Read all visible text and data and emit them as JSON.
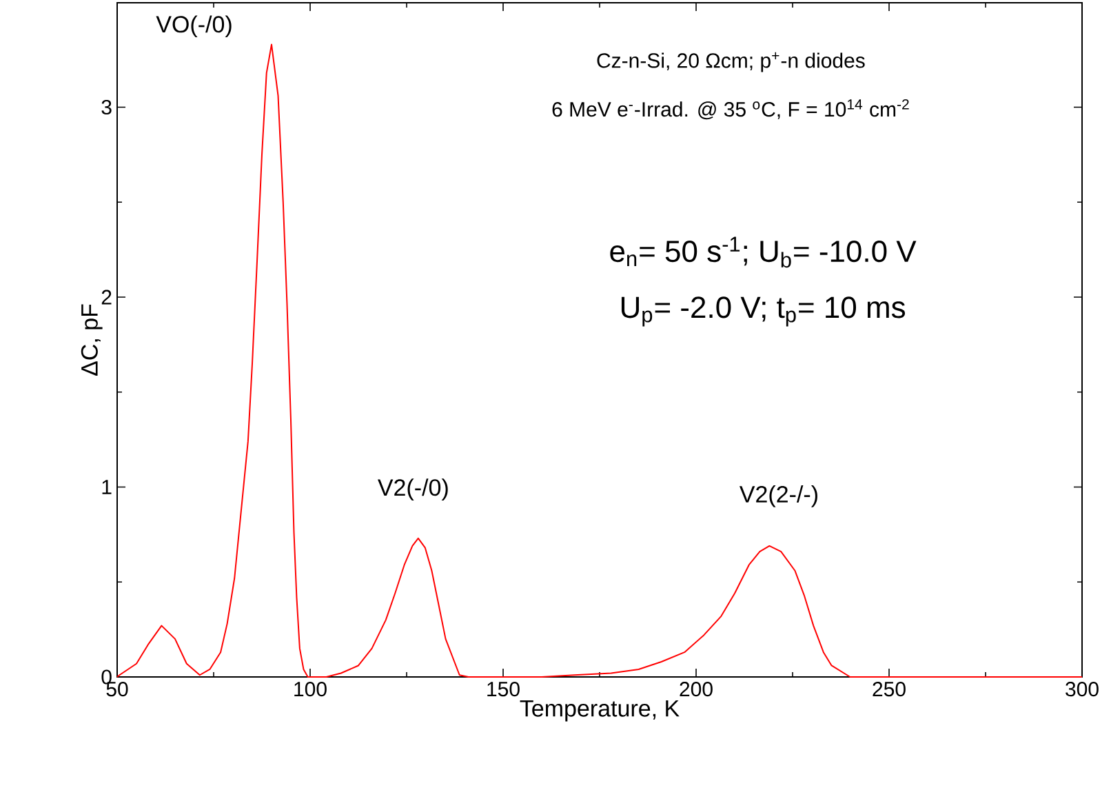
{
  "chart_data": {
    "type": "line",
    "xlabel": "Temperature, K",
    "ylabel": "ΔC, pF",
    "x": [
      50,
      50.6,
      55,
      58,
      61.5,
      65,
      68,
      71.4,
      74,
      76.8,
      78.5,
      80.4,
      82,
      83.9,
      85,
      86.3,
      87.5,
      88.7,
      90.0,
      91.7,
      93,
      94.0,
      95,
      95.8,
      96.5,
      97.3,
      98.3,
      99.4,
      104.2,
      108,
      112.5,
      116,
      119.6,
      122,
      124.4,
      126.5,
      128.0,
      129.8,
      131.5,
      133.3,
      135.1,
      138.7,
      141,
      150,
      160,
      168.5,
      178,
      185.1,
      191,
      197,
      202,
      206.5,
      210,
      213.7,
      216.5,
      219.0,
      222,
      225.6,
      228,
      230.4,
      233,
      235.1,
      239.9,
      250,
      275,
      300
    ],
    "values": [
      0.0,
      0.01,
      0.07,
      0.17,
      0.27,
      0.2,
      0.07,
      0.01,
      0.04,
      0.13,
      0.28,
      0.52,
      0.85,
      1.24,
      1.65,
      2.21,
      2.75,
      3.18,
      3.33,
      3.06,
      2.5,
      1.97,
      1.35,
      0.76,
      0.42,
      0.15,
      0.04,
      0.0,
      0.0,
      0.02,
      0.06,
      0.15,
      0.3,
      0.44,
      0.59,
      0.69,
      0.73,
      0.68,
      0.56,
      0.38,
      0.2,
      0.01,
      0.0,
      0.0,
      0.0,
      0.01,
      0.02,
      0.04,
      0.08,
      0.13,
      0.22,
      0.32,
      0.44,
      0.59,
      0.66,
      0.69,
      0.66,
      0.56,
      0.43,
      0.27,
      0.13,
      0.06,
      0.0,
      0.0,
      0.0,
      0.0
    ],
    "color": "#ff0000",
    "xlim": [
      50,
      300
    ],
    "xticks": [
      50,
      100,
      150,
      200,
      250,
      300
    ],
    "ylim": [
      0,
      3.55
    ],
    "yticks": [
      0,
      1,
      2,
      3
    ],
    "annotations": [
      "Cz-n-Si, 20 Ωcm; p$^{+}$-n diodes",
      "6 MeV e$^{-}$-Irrad. @ 35 $^{o}$C, F = 10$^{14}$ cm$^{-2}$",
      "e$_{n}$= 50 s$^{-1}$; U$_{b}$= -10.0 V",
      "U$_{p}$= -2.0 V; t$_{p}$= 10 ms",
      "VO(-/0)",
      "V2(-/0)",
      "V2(2-/-)"
    ]
  }
}
